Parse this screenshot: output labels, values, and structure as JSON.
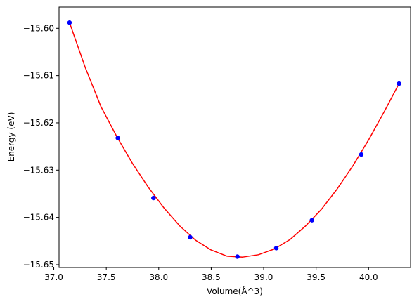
{
  "chart_data": {
    "type": "scatter",
    "xlabel": "Volume(Å^3)",
    "ylabel": "Energy (eV)",
    "xlim": [
      37.05,
      40.4
    ],
    "ylim": [
      -15.6506,
      -15.5955
    ],
    "xticks": [
      37.0,
      37.5,
      38.0,
      38.5,
      39.0,
      39.5,
      40.0
    ],
    "xtick_labels": [
      "37.0",
      "37.5",
      "38.0",
      "38.5",
      "39.0",
      "39.5",
      "40.0"
    ],
    "yticks": [
      -15.6,
      -15.61,
      -15.62,
      -15.63,
      -15.64,
      -15.65
    ],
    "ytick_labels": [
      "−15.60",
      "−15.61",
      "−15.62",
      "−15.63",
      "−15.64",
      "−15.65"
    ],
    "grid": false,
    "series": [
      {
        "kind": "points",
        "color": "#0000ff",
        "x": [
          37.15,
          37.61,
          37.95,
          38.3,
          38.75,
          39.12,
          39.46,
          39.93,
          40.29
        ],
        "y": [
          -15.5988,
          -15.6232,
          -15.6359,
          -15.6442,
          -15.6483,
          -15.6465,
          -15.6406,
          -15.6267,
          -15.6117
        ]
      },
      {
        "kind": "fit-curve",
        "color": "#ff0000",
        "x": [
          37.15,
          37.3,
          37.45,
          37.6,
          37.75,
          37.9,
          38.05,
          38.2,
          38.35,
          38.5,
          38.65,
          38.8,
          38.95,
          39.1,
          39.25,
          39.4,
          39.55,
          39.7,
          39.85,
          40.0,
          40.15,
          40.29
        ],
        "y": [
          -15.5988,
          -15.6083,
          -15.6166,
          -15.6229,
          -15.6286,
          -15.6336,
          -15.638,
          -15.6418,
          -15.6448,
          -15.6469,
          -15.6482,
          -15.6484,
          -15.6479,
          -15.6467,
          -15.6447,
          -15.6418,
          -15.6383,
          -15.634,
          -15.6291,
          -15.6236,
          -15.6176,
          -15.6117
        ]
      }
    ]
  }
}
